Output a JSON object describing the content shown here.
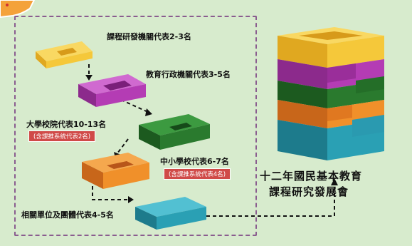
{
  "members": [
    {
      "label": "課程研發機關代表2-3名",
      "note": ""
    },
    {
      "label": "教育行政機關代表3-5名",
      "note": ""
    },
    {
      "label": "大學校院代表10-13名",
      "note": "(含課推系統代表2名)"
    },
    {
      "label": "中小學校代表6-7名",
      "note": "(含課推系統代表4名)"
    },
    {
      "label": "相關單位及團體代表4-5名",
      "note": ""
    }
  ],
  "committee": {
    "line1": "十二年國民基本教育",
    "line2": "課程研究發展會"
  },
  "colors": {
    "yellow": "#f5c83a",
    "magenta": "#b43cb4",
    "green": "#2a7a2e",
    "orange": "#f0902a",
    "teal": "#2aa0b4",
    "background": "#d7ebcd",
    "frame": "#8a5d8f",
    "note_red": "#d04a48"
  }
}
